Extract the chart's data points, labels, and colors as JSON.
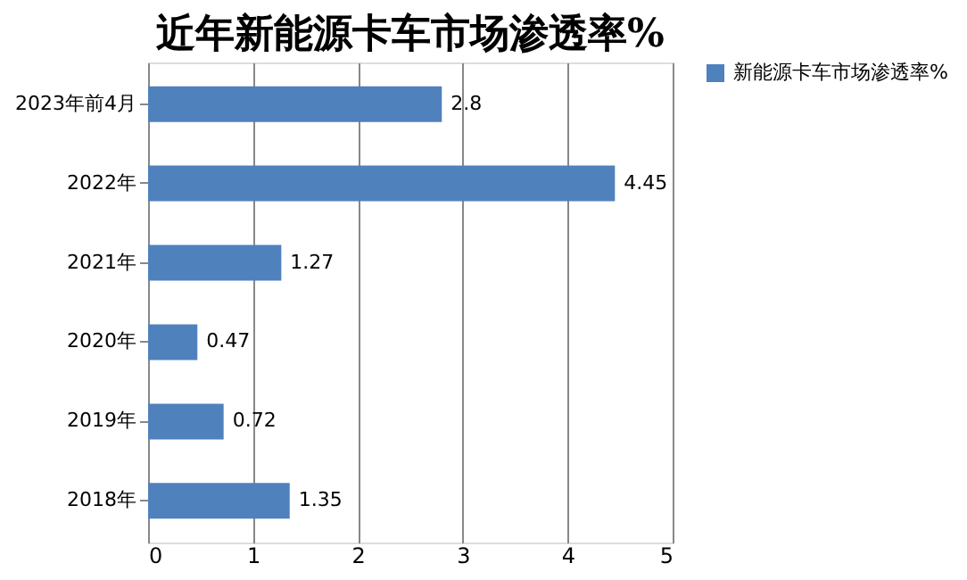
{
  "chart_data": {
    "type": "bar",
    "orientation": "horizontal",
    "title": "近年新能源卡车市场渗透率%",
    "categories": [
      "2023年前4月",
      "2022年",
      "2021年",
      "2020年",
      "2019年",
      "2018年"
    ],
    "series": [
      {
        "name": "新能源卡车市场渗透率%",
        "color": "#4f81bd",
        "values": [
          2.8,
          4.45,
          1.27,
          0.47,
          0.72,
          1.35
        ]
      }
    ],
    "xlim": [
      0,
      5
    ],
    "xticks": [
      0,
      1,
      2,
      3,
      4,
      5
    ],
    "grid": "x",
    "legend": "right",
    "data_labels": true
  }
}
